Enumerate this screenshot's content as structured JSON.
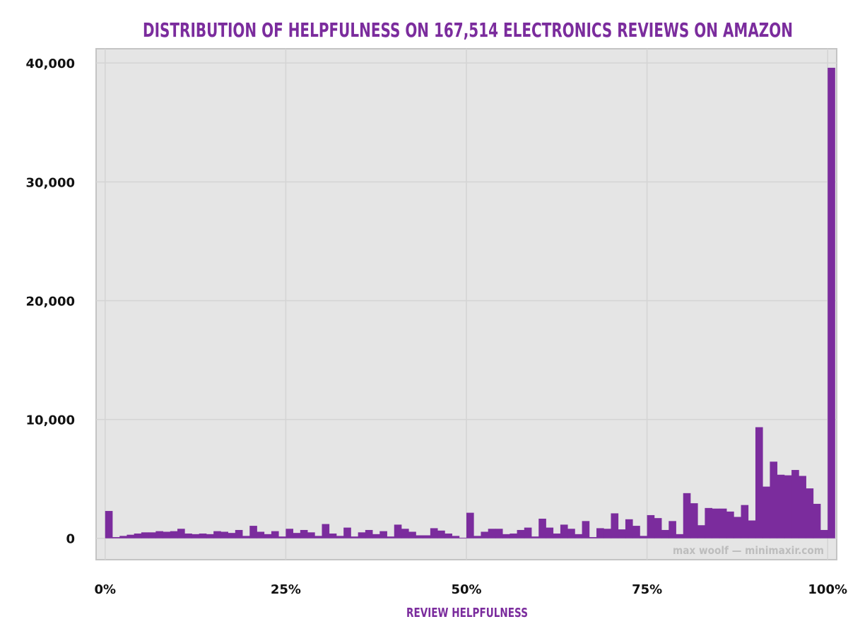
{
  "chart_data": {
    "type": "bar",
    "title": "DISTRIBUTION OF HELPFULNESS ON 167,514 ELECTRONICS REVIEWS ON AMAZON",
    "xlabel": "REVIEW HELPFULNESS",
    "ylabel": "",
    "watermark": "max woolf — minimaxir.com",
    "xlim": [
      -0.0125,
      1.0125
    ],
    "ylim": [
      -1800,
      41200
    ],
    "x_ticks": [
      {
        "value": 0,
        "label": "0%"
      },
      {
        "value": 0.25,
        "label": "25%"
      },
      {
        "value": 0.5,
        "label": "50%"
      },
      {
        "value": 0.75,
        "label": "75%"
      },
      {
        "value": 1.0,
        "label": "100%"
      }
    ],
    "y_ticks": [
      {
        "value": 0,
        "label": "0"
      },
      {
        "value": 10000,
        "label": "10,000"
      },
      {
        "value": 20000,
        "label": "20,000"
      },
      {
        "value": 30000,
        "label": "30,000"
      },
      {
        "value": 40000,
        "label": "40,000"
      }
    ],
    "grid": true,
    "bin_width": 0.01,
    "series": [
      {
        "color": "#7b2c9d",
        "values": [
          2300,
          100,
          200,
          300,
          400,
          500,
          500,
          600,
          550,
          600,
          800,
          400,
          350,
          400,
          350,
          600,
          550,
          450,
          700,
          200,
          1050,
          550,
          350,
          600,
          150,
          800,
          450,
          700,
          500,
          200,
          1200,
          400,
          200,
          900,
          150,
          500,
          700,
          350,
          600,
          150,
          1150,
          800,
          550,
          250,
          250,
          850,
          650,
          400,
          200,
          50,
          2150,
          200,
          550,
          800,
          800,
          350,
          400,
          700,
          900,
          150,
          1650,
          900,
          400,
          1150,
          800,
          350,
          1450,
          100,
          850,
          800,
          2100,
          750,
          1600,
          1050,
          200,
          1950,
          1700,
          700,
          1450,
          350,
          3800,
          2950,
          1100,
          2550,
          2500,
          2500,
          2250,
          1800,
          2800,
          1500,
          9350,
          4350,
          6450,
          5350,
          5300,
          5750,
          5250,
          4200,
          2900,
          700,
          39600
        ]
      }
    ]
  },
  "colors": {
    "title": "#7b2c9d",
    "bar": "#7b2c9d",
    "panel_bg": "#e5e5e5",
    "grid": "#d4d4d4",
    "panel_border": "#c4c4c4"
  }
}
